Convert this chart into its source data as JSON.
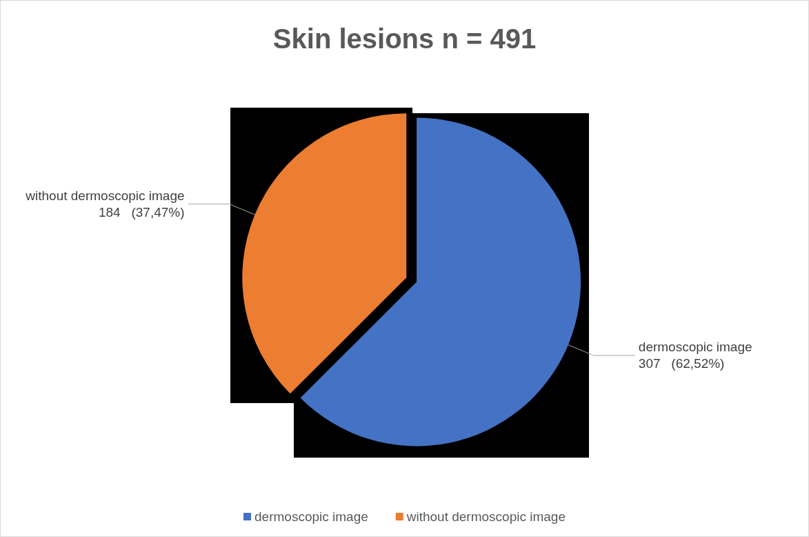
{
  "chart_data": {
    "type": "pie",
    "title": "Skin lesions n = 491",
    "categories": [
      "dermoscopic image",
      "without dermoscopic image"
    ],
    "values": [
      307,
      184
    ],
    "colors": [
      "#4472c4",
      "#ed7d31"
    ],
    "value_labels": [
      "307   (62,52%)",
      "184   (37,47%)"
    ],
    "legend": "bottom"
  }
}
